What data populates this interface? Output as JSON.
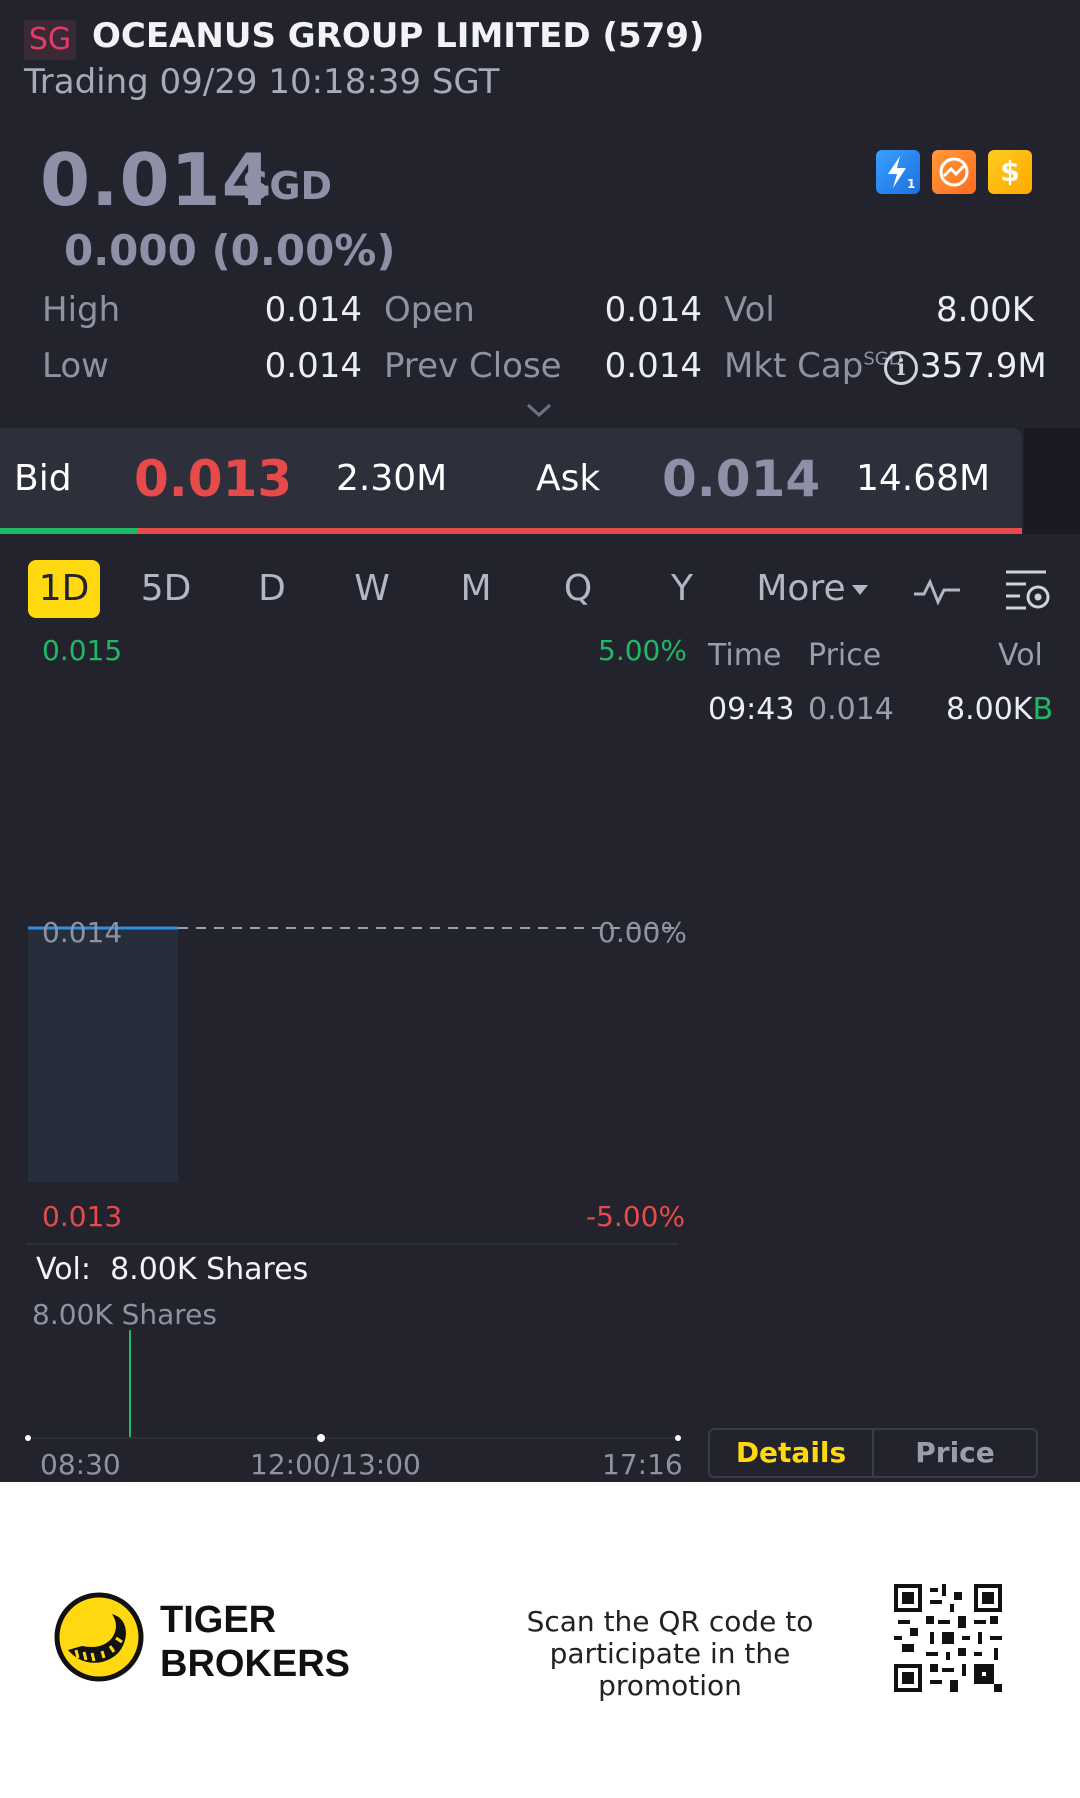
{
  "header": {
    "market": "SG",
    "title": "OCEANUS GROUP LIMITED (579)",
    "status": "Trading 09/29 10:18:39 SGT"
  },
  "quote": {
    "price": "0.014",
    "currency": "SGD",
    "change": "0.000 (0.00%)",
    "badges": [
      "flash-icon",
      "exchange-icon",
      "dollar-icon"
    ]
  },
  "stats": {
    "high_label": "High",
    "high": "0.014",
    "low_label": "Low",
    "low": "0.014",
    "open_label": "Open",
    "open": "0.014",
    "prev_close_label": "Prev Close",
    "prev_close": "0.014",
    "vol_label": "Vol",
    "vol": "8.00K",
    "mkt_cap_label": "Mkt Cap",
    "mkt_cap_unit": "SGD",
    "mkt_cap": "357.9M"
  },
  "bidask": {
    "bid_label": "Bid",
    "bid_price": "0.013",
    "bid_size": "2.30M",
    "ask_label": "Ask",
    "ask_price": "0.014",
    "ask_size": "14.68M",
    "bid_ratio": 0.135
  },
  "tabs": [
    "1D",
    "5D",
    "D",
    "W",
    "M",
    "Q",
    "Y",
    "More"
  ],
  "chart": {
    "y_high": "0.015",
    "y_high_pct": "5.00%",
    "y_mid": "0.014",
    "y_mid_pct": "0.00%",
    "y_low": "0.013",
    "y_low_pct": "-5.00%",
    "vol_label": "Vol:",
    "vol_value": "8.00K Shares",
    "vol_axis": "8.00K Shares",
    "x_start": "08:30",
    "x_mid": "12:00/13:00",
    "x_end": "17:16"
  },
  "trades": {
    "headers": [
      "Time",
      "Price",
      "Vol"
    ],
    "rows": [
      {
        "time": "09:43",
        "price": "0.014",
        "vol": "8.00K",
        "side": "B"
      }
    ]
  },
  "segments": {
    "details": "Details",
    "price": "Price"
  },
  "footer": {
    "brand_line1": "TIGER",
    "brand_line2": "BROKERS",
    "promo": "Scan the QR code to participate in the promotion"
  },
  "colors": {
    "up": "#1fb865",
    "down": "#e64a4a",
    "accent": "#ffd80f",
    "bg": "#22232d"
  }
}
